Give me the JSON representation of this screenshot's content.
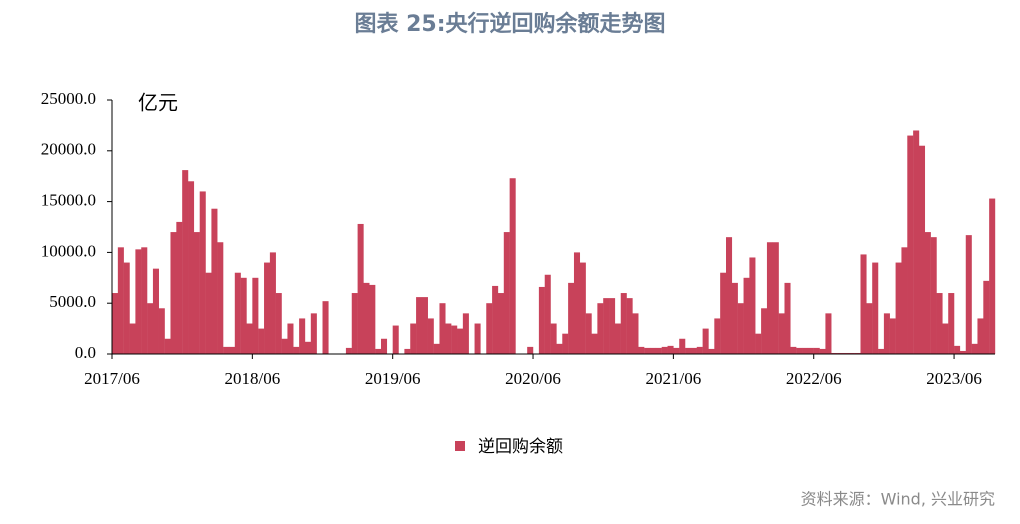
{
  "chart_data": {
    "type": "bar",
    "title": "图表 25:央行逆回购余额走势图",
    "unit_label": "亿元",
    "source": "资料来源：Wind, 兴业研究",
    "categories": [
      "2017/06",
      null,
      null,
      null,
      null,
      null,
      null,
      null,
      null,
      null,
      null,
      null,
      null,
      null,
      null,
      null,
      null,
      null,
      null,
      null,
      null,
      null,
      null,
      null,
      "2018/06",
      null,
      null,
      null,
      null,
      null,
      null,
      null,
      null,
      null,
      null,
      null,
      null,
      null,
      null,
      null,
      null,
      null,
      null,
      null,
      null,
      null,
      null,
      null,
      "2019/06",
      null,
      null,
      null,
      null,
      null,
      null,
      null,
      null,
      null,
      null,
      null,
      null,
      null,
      null,
      null,
      null,
      null,
      null,
      null,
      null,
      null,
      null,
      null,
      "2020/06",
      null,
      null,
      null,
      null,
      null,
      null,
      null,
      null,
      null,
      null,
      null,
      null,
      null,
      null,
      null,
      null,
      null,
      null,
      null,
      null,
      null,
      null,
      null,
      "2021/06",
      null,
      null,
      null,
      null,
      null,
      null,
      null,
      null,
      null,
      null,
      null,
      null,
      null,
      null,
      null,
      null,
      null,
      null,
      null,
      null,
      null,
      null,
      null,
      "2022/06",
      null,
      null,
      null,
      null,
      null,
      null,
      null,
      null,
      null,
      null,
      null,
      null,
      null,
      null,
      null,
      null,
      null,
      null,
      null,
      null,
      null,
      null,
      null,
      "2023/06",
      null,
      null,
      null,
      null,
      null,
      null
    ],
    "series": [
      {
        "name": "逆回购余额",
        "color": "#c8425a",
        "values": [
          6000,
          10500,
          9000,
          3000,
          10300,
          10500,
          5000,
          8400,
          4500,
          1500,
          12000,
          13000,
          18100,
          17000,
          12000,
          16000,
          8000,
          14300,
          11000,
          700,
          700,
          8000,
          7500,
          3000,
          7500,
          2500,
          9000,
          10000,
          6000,
          1500,
          3000,
          700,
          3500,
          1200,
          4000,
          0,
          5200,
          0,
          0,
          0,
          600,
          6000,
          12800,
          7000,
          6800,
          500,
          1500,
          0,
          2800,
          0,
          500,
          3000,
          5600,
          5600,
          3500,
          1000,
          5000,
          3000,
          2800,
          2500,
          4000,
          0,
          3000,
          0,
          5000,
          6700,
          6000,
          12000,
          17300,
          0,
          0,
          700,
          0,
          6600,
          7800,
          3000,
          1000,
          2000,
          7000,
          10000,
          9000,
          4000,
          2000,
          5000,
          5500,
          5500,
          3000,
          6000,
          5500,
          4000,
          700,
          600,
          600,
          600,
          700,
          800,
          600,
          1500,
          600,
          600,
          700,
          2500,
          500,
          3500,
          8000,
          11500,
          7000,
          5000,
          7500,
          9500,
          2000,
          4500,
          11000,
          11000,
          4000,
          7000,
          700,
          600,
          600,
          600,
          600,
          500,
          4000,
          100,
          100,
          100,
          100,
          100,
          9800,
          5000,
          9000,
          500,
          4000,
          3500,
          9000,
          10500,
          21500,
          22000,
          20500,
          12000,
          11500,
          6000,
          3000,
          6000,
          800,
          300,
          11700,
          1000,
          3500,
          7200,
          15300
        ]
      }
    ],
    "ylim": [
      0,
      25000
    ],
    "yticks": [
      {
        "value": 0,
        "label": "0.0"
      },
      {
        "value": 5000,
        "label": "5000.0"
      },
      {
        "value": 10000,
        "label": "10000.0"
      },
      {
        "value": 15000,
        "label": "15000.0"
      },
      {
        "value": 20000,
        "label": "20000.0"
      },
      {
        "value": 25000,
        "label": "25000.0"
      }
    ]
  }
}
